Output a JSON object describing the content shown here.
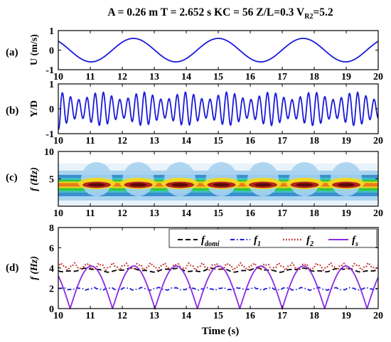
{
  "figure_title": {
    "text": "A = 0.26 m   T = 2.652 s   KC = 56  Z/L=0.3  V",
    "sub": "R2",
    "tail": "=5.2"
  },
  "x_label": "Time (s)",
  "chart_data": [
    {
      "panel": "(a)",
      "type": "line",
      "ylabel": "U  (m/s)",
      "xlim": [
        10,
        20
      ],
      "ylim": [
        -1,
        1
      ],
      "xticks": [
        10,
        11,
        12,
        13,
        14,
        15,
        16,
        17,
        18,
        19,
        20
      ],
      "yticks": [
        -1,
        0,
        1
      ],
      "series": [
        {
          "color": "#1a1adb",
          "style": "solid",
          "kind": "sine",
          "amplitude": 0.6,
          "period": 2.652,
          "peak_x": 12.35,
          "offset": 0,
          "x_range": [
            10,
            20
          ]
        }
      ]
    },
    {
      "panel": "(b)",
      "type": "line",
      "ylabel": "Y/D",
      "xlim": [
        10,
        20
      ],
      "ylim": [
        -1,
        1
      ],
      "xticks": [
        10,
        11,
        12,
        13,
        14,
        15,
        16,
        17,
        18,
        19,
        20
      ],
      "yticks": [
        -1,
        0,
        1
      ],
      "series": [
        {
          "color": "#1a1adb",
          "style": "solid",
          "kind": "modulated",
          "base_freq": 3.9,
          "amp_mean": 0.52,
          "amp_mod": 0.15,
          "mod_period": 1.326,
          "start_x": 10,
          "start_y": -0.85,
          "x_range": [
            10,
            20
          ]
        }
      ]
    },
    {
      "panel": "(c)",
      "type": "heatmap",
      "ylabel": "f (Hz)",
      "xlim": [
        10,
        20
      ],
      "ylim": [
        0,
        10
      ],
      "xticks": [
        10,
        11,
        12,
        13,
        14,
        15,
        16,
        17,
        18,
        19,
        20
      ],
      "yticks": [
        5,
        10
      ],
      "band_center_hz": 3.9,
      "harmonic_hz": 1.9,
      "hot_spots_x": [
        11.2,
        12.5,
        13.8,
        15.1,
        16.4,
        17.7,
        19.0
      ],
      "colors": [
        "#e8f3fb",
        "#a9d3ef",
        "#3b8fd0",
        "#3fc0c0",
        "#37c837",
        "#f0d820",
        "#e87a1e",
        "#b8231b",
        "#5a0a0a"
      ]
    },
    {
      "panel": "(d)",
      "type": "line",
      "ylabel": "f (Hz)",
      "xlim": [
        10,
        20
      ],
      "ylim": [
        0,
        8
      ],
      "xticks": [
        10,
        11,
        12,
        13,
        14,
        15,
        16,
        17,
        18,
        19,
        20
      ],
      "yticks": [
        0,
        2,
        4,
        6,
        8
      ],
      "legend": {
        "placement": "top",
        "entries": [
          {
            "label": "f",
            "sub": "domi",
            "color": "#000000",
            "style": "dash"
          },
          {
            "label": "f",
            "sub": "1",
            "color": "#1a1adb",
            "style": "dashdot"
          },
          {
            "label": "f",
            "sub": "2",
            "color": "#c0281e",
            "style": "dot"
          },
          {
            "label": "f",
            "sub": "s",
            "color": "#8a2be2",
            "style": "solid"
          }
        ]
      },
      "series": [
        {
          "name": "fdomi",
          "color": "#000000",
          "style": "dash",
          "kind": "wavy",
          "mean": 3.8,
          "amp": 0.15,
          "period": 1.326,
          "x_range": [
            10,
            20
          ]
        },
        {
          "name": "f1",
          "color": "#1a1adb",
          "style": "dashdot",
          "kind": "wavy",
          "mean": 1.95,
          "amp": 0.1,
          "period": 0.5,
          "x_range": [
            10,
            20
          ]
        },
        {
          "name": "f2",
          "color": "#c0281e",
          "style": "dot",
          "kind": "wavy",
          "mean": 4.15,
          "amp": 0.25,
          "period": 0.4,
          "x_range": [
            10,
            20
          ]
        },
        {
          "name": "fs",
          "color": "#8a2be2",
          "style": "solid",
          "kind": "abs_sine",
          "amp": 4.2,
          "period": 2.652,
          "zero_x": 10.37,
          "x_range": [
            10,
            20
          ]
        }
      ]
    }
  ]
}
